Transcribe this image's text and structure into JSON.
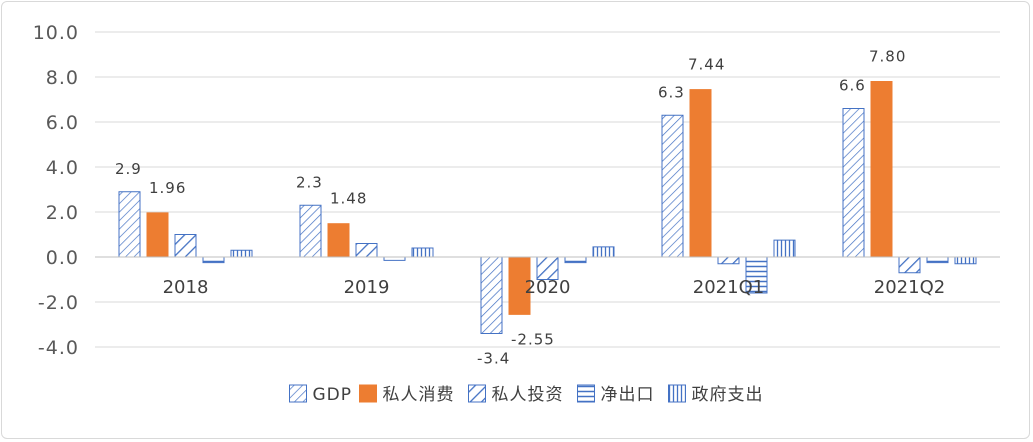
{
  "chart_data": {
    "type": "bar",
    "categories": [
      "2018",
      "2019",
      "2020",
      "2021Q1",
      "2021Q2"
    ],
    "series": [
      {
        "name": "GDP",
        "values": [
          2.9,
          2.3,
          -3.4,
          6.3,
          6.6
        ],
        "pattern": "diag-fine",
        "color": "#4472c4"
      },
      {
        "name": "私人消费",
        "values": [
          1.96,
          1.48,
          -2.55,
          7.44,
          7.8
        ],
        "pattern": "solid",
        "color": "#ed7d31"
      },
      {
        "name": "私人投资",
        "values": [
          1.0,
          0.6,
          -1.0,
          -0.3,
          -0.7
        ],
        "pattern": "diag-wide",
        "color": "#4472c4"
      },
      {
        "name": "净出口",
        "values": [
          -0.25,
          -0.15,
          -0.25,
          -1.6,
          -0.25
        ],
        "pattern": "horizontal",
        "color": "#4472c4"
      },
      {
        "name": "政府支出",
        "values": [
          0.3,
          0.4,
          0.45,
          0.75,
          -0.3
        ],
        "pattern": "vertical",
        "color": "#4472c4"
      }
    ],
    "data_labels": [
      {
        "series": 0,
        "category": 0,
        "text": "2.9"
      },
      {
        "series": 1,
        "category": 0,
        "text": "1.96"
      },
      {
        "series": 0,
        "category": 1,
        "text": "2.3"
      },
      {
        "series": 1,
        "category": 1,
        "text": "1.48"
      },
      {
        "series": 0,
        "category": 2,
        "text": "-3.4"
      },
      {
        "series": 1,
        "category": 2,
        "text": "-2.55"
      },
      {
        "series": 0,
        "category": 3,
        "text": "6.3"
      },
      {
        "series": 1,
        "category": 3,
        "text": "7.44"
      },
      {
        "series": 0,
        "category": 4,
        "text": "6.6"
      },
      {
        "series": 1,
        "category": 4,
        "text": "7.80"
      }
    ],
    "y_ticks": [
      "10.0",
      "8.0",
      "6.0",
      "4.0",
      "2.0",
      "0.0",
      "-2.0",
      "-4.0"
    ],
    "ylim": [
      -4,
      10
    ],
    "grid": true,
    "legend_position": "bottom",
    "title": "",
    "xlabel": "",
    "ylabel": ""
  },
  "colors": {
    "pattern_blue": "#4472c4",
    "orange": "#ed7d31",
    "grid": "#d9d9d9",
    "text": "#404040"
  }
}
